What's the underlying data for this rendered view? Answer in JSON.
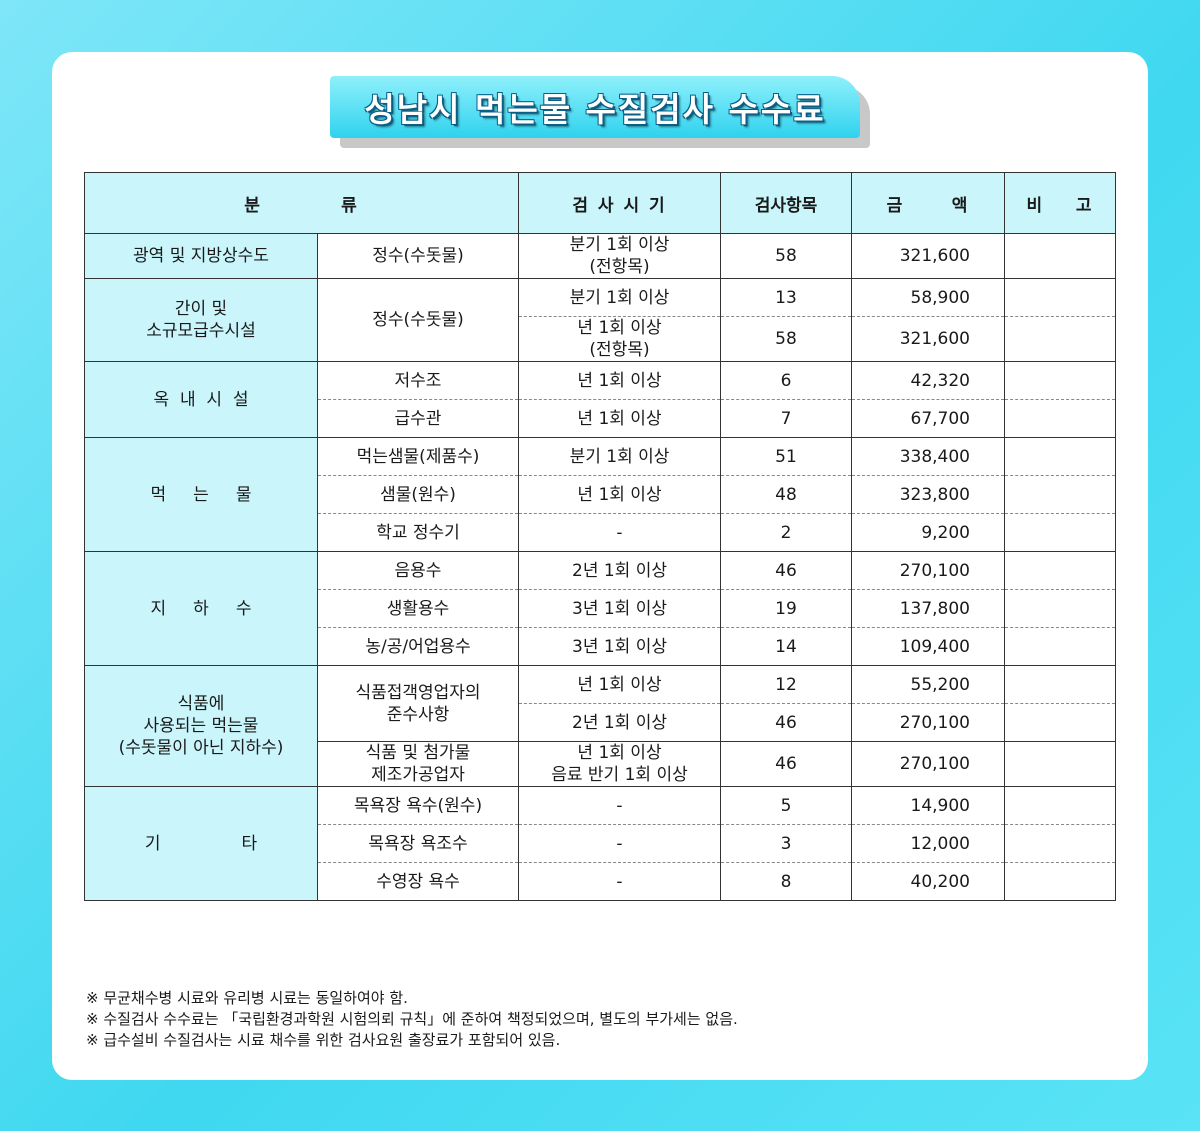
{
  "title": "성남시 먹는물 수질검사 수수료",
  "headers": {
    "category": "분          류",
    "timing": "검 사 시 기",
    "items": "검사항목",
    "amount": "금      액",
    "remark": "비    고"
  },
  "groups": {
    "g1": {
      "name": "광역 및 지방상수도"
    },
    "g2": {
      "name_line1": "간이 및",
      "name_line2": "소규모급수시설"
    },
    "g3": {
      "name": "옥  내  시  설"
    },
    "g4": {
      "name": "먹     는     물"
    },
    "g5": {
      "name": "지     하     수"
    },
    "g6": {
      "name_line1": "식품에",
      "name_line2": "사용되는 먹는물",
      "name_line3": "(수돗물이 아닌 지하수)"
    },
    "g7": {
      "name": "기               타"
    }
  },
  "rows": {
    "r1": {
      "sub": "정수(수돗물)",
      "timing_line1": "분기 1회 이상",
      "timing_line2": "(전항목)",
      "items": "58",
      "amount": "321,600"
    },
    "r2": {
      "sub": "정수(수돗물)",
      "timing": "분기 1회 이상",
      "items": "13",
      "amount": "58,900"
    },
    "r3": {
      "timing_line1": "년 1회 이상",
      "timing_line2": "(전항목)",
      "items": "58",
      "amount": "321,600"
    },
    "r4": {
      "sub": "저수조",
      "timing": "년 1회 이상",
      "items": "6",
      "amount": "42,320"
    },
    "r5": {
      "sub": "급수관",
      "timing": "년 1회 이상",
      "items": "7",
      "amount": "67,700"
    },
    "r6": {
      "sub": "먹는샘물(제품수)",
      "timing": "분기 1회 이상",
      "items": "51",
      "amount": "338,400"
    },
    "r7": {
      "sub": "샘물(원수)",
      "timing": "년 1회 이상",
      "items": "48",
      "amount": "323,800"
    },
    "r8": {
      "sub": "학교 정수기",
      "timing": "-",
      "items": "2",
      "amount": "9,200"
    },
    "r9": {
      "sub": "음용수",
      "timing": "2년 1회 이상",
      "items": "46",
      "amount": "270,100"
    },
    "r10": {
      "sub": "생활용수",
      "timing": "3년 1회 이상",
      "items": "19",
      "amount": "137,800"
    },
    "r11": {
      "sub": "농/공/어업용수",
      "timing": "3년 1회 이상",
      "items": "14",
      "amount": "109,400"
    },
    "r12": {
      "sub_line1": "식품접객영업자의",
      "sub_line2": "준수사항",
      "timing": "년 1회 이상",
      "items": "12",
      "amount": "55,200"
    },
    "r13": {
      "timing": "2년 1회 이상",
      "items": "46",
      "amount": "270,100"
    },
    "r14": {
      "sub_line1": "식품 및 첨가물",
      "sub_line2": "제조가공업자",
      "timing_line1": "년 1회 이상",
      "timing_line2": "음료 반기 1회 이상",
      "items": "46",
      "amount": "270,100"
    },
    "r15": {
      "sub": "목욕장 욕수(원수)",
      "timing": "-",
      "items": "5",
      "amount": "14,900"
    },
    "r16": {
      "sub": "목욕장 욕조수",
      "timing": "-",
      "items": "3",
      "amount": "12,000"
    },
    "r17": {
      "sub": "수영장 욕수",
      "timing": "-",
      "items": "8",
      "amount": "40,200"
    }
  },
  "notes": [
    "※ 무균채수병 시료와 유리병 시료는 동일하여야 함.",
    "※ 수질검사 수수료는 「국립환경과학원 시험의뢰 규칙」에 준하여 책정되었으며, 별도의 부가세는 없음.",
    "※ 급수설비 수질검사는 시료 채수를 위한 검사요원 출장료가 포함되어 있음."
  ],
  "colors": {
    "background": "#3fd8f0",
    "header_fill": "#c9f5fb",
    "title_fill": "#2fd2ee",
    "title_outline": "#0b5f86"
  }
}
